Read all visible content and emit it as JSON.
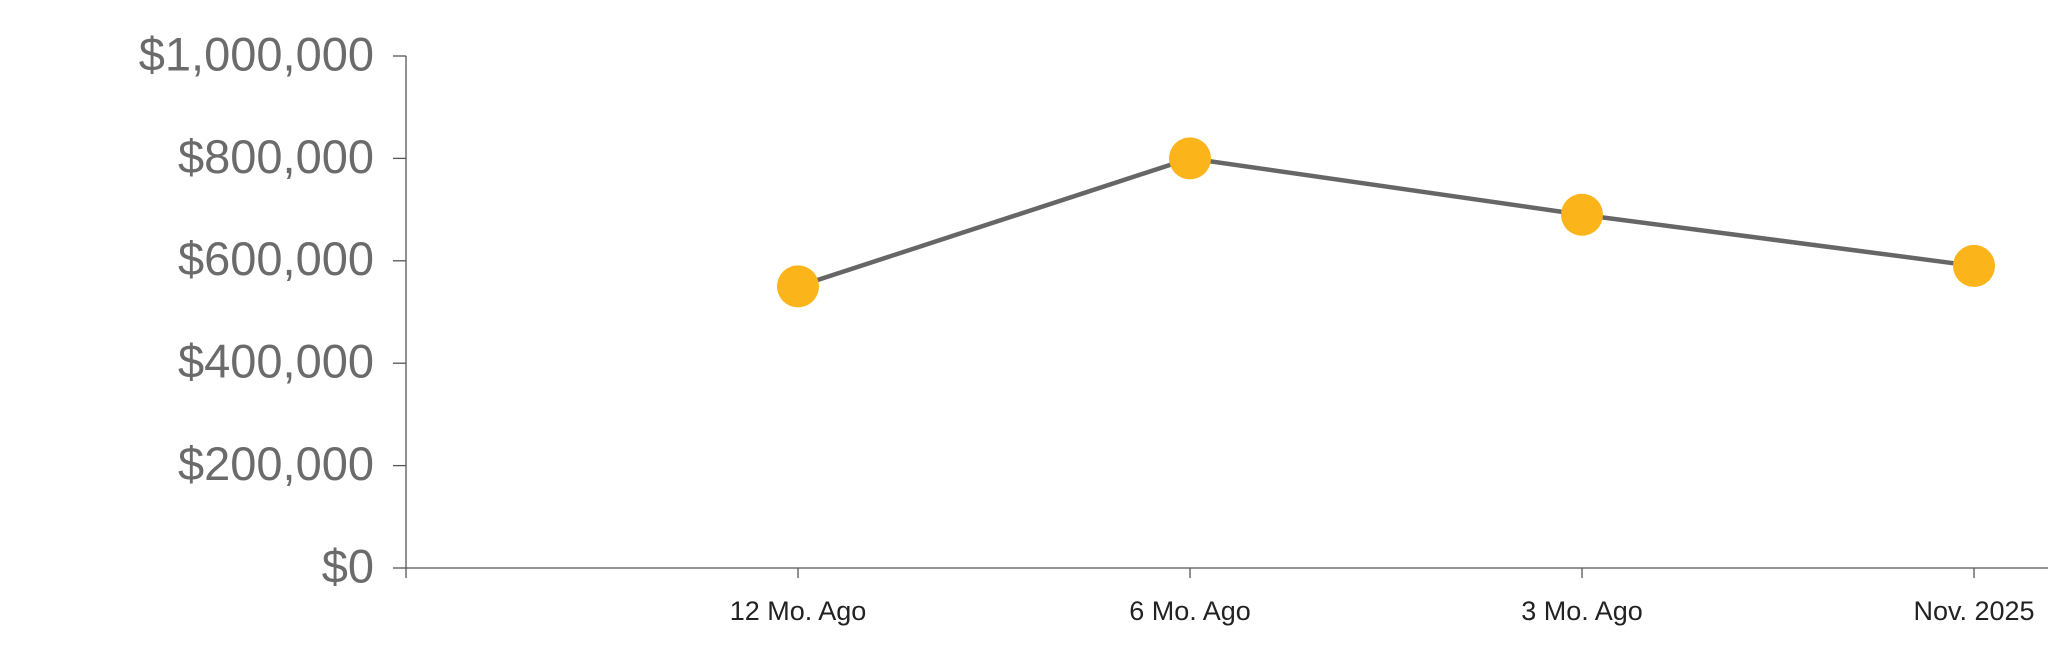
{
  "chart_data": {
    "type": "line",
    "categories": [
      "12 Mo. Ago",
      "6 Mo. Ago",
      "3 Mo. Ago",
      "Nov. 2025"
    ],
    "series": [
      {
        "color": "#fbb41a",
        "line_color": "#666666",
        "values": [
          550000,
          800000,
          690000,
          590000
        ]
      }
    ],
    "ylim": [
      0,
      1000000
    ],
    "yticks": [
      {
        "value": 0,
        "label": "$0"
      },
      {
        "value": 200000,
        "label": "$200,000"
      },
      {
        "value": 400000,
        "label": "$400,000"
      },
      {
        "value": 600000,
        "label": "$600,000"
      },
      {
        "value": 800000,
        "label": "$800,000"
      },
      {
        "value": 1000000,
        "label": "$1,000,000"
      }
    ],
    "grid": false
  }
}
